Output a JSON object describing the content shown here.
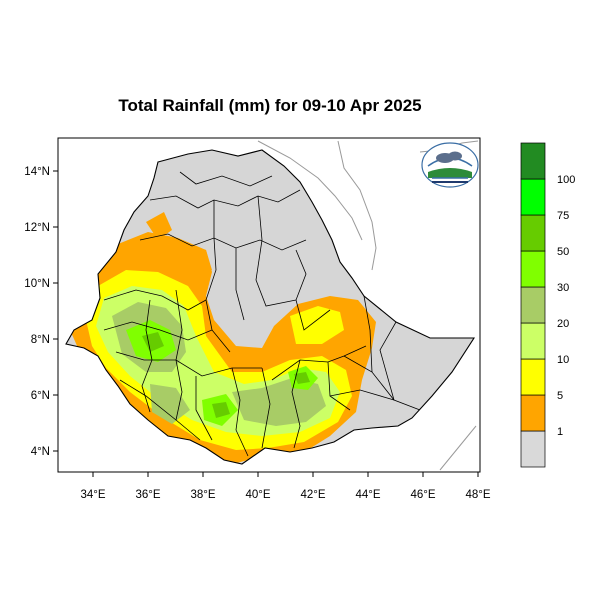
{
  "map": {
    "title": "Total Rainfall (mm) for 09-10 Apr 2025",
    "lon_ticks": [
      "34°E",
      "36°E",
      "38°E",
      "40°E",
      "42°E",
      "44°E",
      "46°E",
      "48°E"
    ],
    "lat_ticks": [
      "14°N",
      "12°N",
      "10°N",
      "8°N",
      "6°N",
      "4°N"
    ],
    "extent": {
      "lon": [
        32.9,
        48.2
      ],
      "lat": [
        3.1,
        15.0
      ]
    },
    "land_color": "#d6d6d6"
  },
  "legend": {
    "unit": "mm",
    "labels": [
      "1",
      "5",
      "10",
      "20",
      "30",
      "50",
      "75",
      "100"
    ],
    "colors": [
      "#d9d9d9",
      "#ffa500",
      "#ffff00",
      "#ccff66",
      "#a8cc66",
      "#80ff00",
      "#66cc00",
      "#00ff00",
      "#228b22"
    ]
  },
  "logo": {
    "text": "Ethiopian Meteorology Institute"
  }
}
